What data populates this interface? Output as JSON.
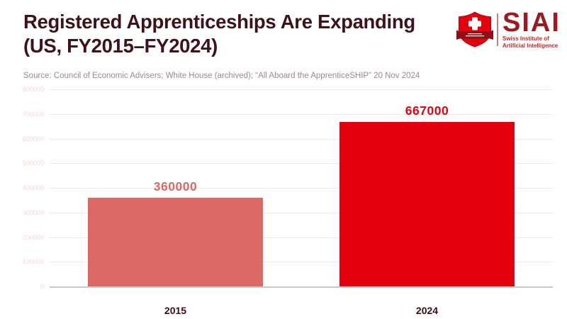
{
  "page": {
    "background": "#ffffff"
  },
  "header": {
    "title_line1": "Registered Apprenticeships Are Expanding",
    "title_line2": "(US, FY2015–FY2024)",
    "title_color": "#3E1218"
  },
  "source_line": "Source: Council of Economic Advisers; White House (archived); “All Aboard the ApprenticeSHIP” 20 Nov 2024",
  "logo": {
    "wordmark": "SIAI",
    "subtitle_line1": "Swiss Institute of",
    "subtitle_line2": "Artificial Intelligence",
    "wordmark_color": "#9A1C22",
    "subtitle_color": "#C02728",
    "shield_red": "#E3000F",
    "ribbon_dark": "#8A1217",
    "cross_white": "#FFFFFF"
  },
  "chart_data": {
    "type": "bar",
    "title": "Registered Apprenticeships Are Expanding (US, FY2015–FY2024)",
    "categories": [
      "2015",
      "2024"
    ],
    "values": [
      360000,
      667000
    ],
    "value_labels": [
      "360000",
      "667000"
    ],
    "bar_colors": [
      "#DD6764",
      "#E3000F"
    ],
    "value_label_colors": [
      "#DD6764",
      "#E3000F"
    ],
    "xlabel": "",
    "ylabel": "",
    "ylim": [
      0,
      800000
    ],
    "yticks": [
      0,
      100000,
      200000,
      300000,
      400000,
      500000,
      600000,
      700000,
      800000
    ],
    "grid": true,
    "legend": "none",
    "gridline_color": "#FAE5E3",
    "axis_line_color": "#C9C9C9",
    "tick_label_color": "#F6D6D4",
    "category_label_color": "#3A0F14"
  }
}
